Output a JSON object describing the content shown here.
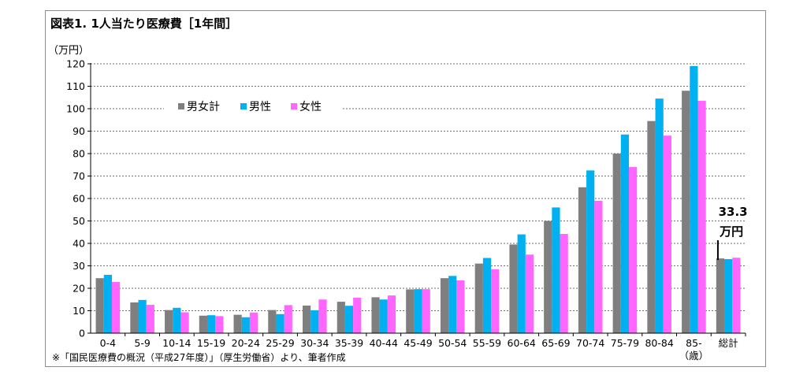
{
  "chart_data": {
    "type": "bar",
    "title": "図表1. 1人当たり医療費［1年間］",
    "ylabel": "（万円）",
    "ylim": [
      0,
      120
    ],
    "ystep": 10,
    "categories": [
      "0-4",
      "5-9",
      "10-14",
      "15-19",
      "20-24",
      "25-29",
      "30-34",
      "35-39",
      "40-44",
      "45-49",
      "50-54",
      "55-59",
      "60-64",
      "65-69",
      "70-74",
      "75-79",
      "80-84",
      "85-",
      "総計"
    ],
    "category_sublabels": {
      "85-": "（歳）"
    },
    "series": [
      {
        "name": "男女計",
        "color": "#7f7f7f",
        "values": [
          24.5,
          13.7,
          10.3,
          7.8,
          8.2,
          10.3,
          12.3,
          14.0,
          16.0,
          19.5,
          24.5,
          31.0,
          39.5,
          50.0,
          65.0,
          80.0,
          94.5,
          108.0,
          33.3
        ]
      },
      {
        "name": "男性",
        "color": "#00b0f0",
        "values": [
          26.0,
          14.8,
          11.3,
          8.0,
          7.1,
          8.5,
          10.2,
          12.2,
          15.0,
          19.6,
          25.5,
          33.5,
          44.0,
          56.0,
          72.5,
          88.5,
          104.5,
          119.0,
          33.0
        ]
      },
      {
        "name": "女性",
        "color": "#ff66ff",
        "values": [
          22.8,
          12.6,
          9.3,
          7.6,
          9.2,
          12.5,
          15.0,
          15.8,
          16.8,
          19.6,
          23.5,
          28.5,
          35.0,
          44.2,
          59.0,
          74.0,
          88.0,
          103.5,
          33.6
        ]
      }
    ],
    "legend_position": "top-left",
    "grid": true,
    "annotation": {
      "value_text": "33.3",
      "unit_text": "万円",
      "category": "総計"
    }
  },
  "source_note": "※「国民医療費の概況（平成27年度）」（厚生労働省）より、筆者作成"
}
